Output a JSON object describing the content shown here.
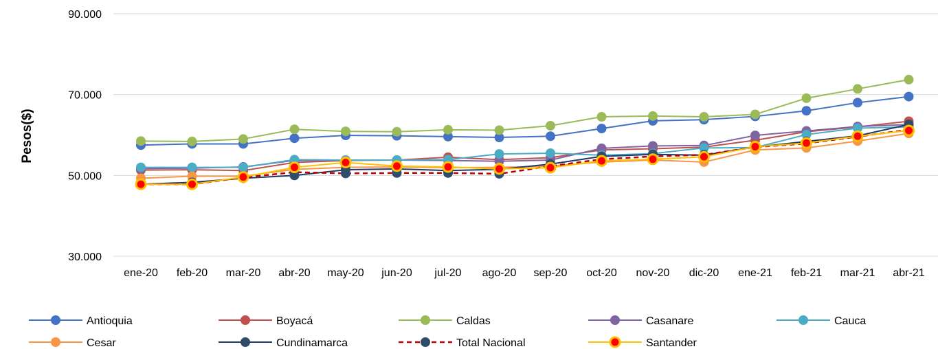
{
  "chart_data": {
    "type": "line",
    "ylabel": "Pesos($)",
    "xlabel": "",
    "ylim": [
      30000,
      90000
    ],
    "yticks": [
      30000,
      50000,
      70000,
      90000
    ],
    "ytick_labels": [
      "30.000",
      "50.000",
      "70.000",
      "90.000"
    ],
    "grid": "horizontal",
    "legend_position": "bottom",
    "categories": [
      "ene-20",
      "feb-20",
      "mar-20",
      "abr-20",
      "may-20",
      "jun-20",
      "jul-20",
      "ago-20",
      "sep-20",
      "oct-20",
      "nov-20",
      "dic-20",
      "ene-21",
      "feb-21",
      "mar-21",
      "abr-21"
    ],
    "series": [
      {
        "name": "Antioquia",
        "color": "#4472C4",
        "marker": "#4472C4",
        "dashed": false,
        "values": [
          57500,
          57800,
          57800,
          59200,
          59900,
          59800,
          59600,
          59400,
          59700,
          61600,
          63500,
          63800,
          64600,
          66000,
          68000,
          69500
        ]
      },
      {
        "name": "Boyacá",
        "color": "#C0504D",
        "marker": "#C0504D",
        "dashed": false,
        "values": [
          51300,
          51400,
          51200,
          53200,
          53700,
          53800,
          54500,
          53900,
          54400,
          56300,
          56600,
          57000,
          58700,
          60800,
          62000,
          63400
        ]
      },
      {
        "name": "Caldas",
        "color": "#9BBB59",
        "marker": "#9BBB59",
        "dashed": false,
        "values": [
          58500,
          58400,
          59000,
          61400,
          60900,
          60800,
          61300,
          61200,
          62300,
          64500,
          64700,
          64500,
          65100,
          69100,
          71400,
          73700
        ]
      },
      {
        "name": "Casanare",
        "color": "#8064A2",
        "marker": "#8064A2",
        "dashed": false,
        "values": [
          51700,
          51800,
          52100,
          53700,
          53800,
          53800,
          53700,
          53500,
          53800,
          56700,
          57300,
          57400,
          59900,
          61000,
          62100,
          62600
        ]
      },
      {
        "name": "Cauca",
        "color": "#4BACC6",
        "marker": "#4BACC6",
        "dashed": false,
        "values": [
          52000,
          52000,
          52000,
          53900,
          53800,
          53800,
          53900,
          55300,
          55500,
          55000,
          55400,
          56800,
          56900,
          60100,
          61700,
          62000
        ]
      },
      {
        "name": "Cesar",
        "color": "#F79646",
        "marker": "#F79646",
        "dashed": false,
        "values": [
          49300,
          49800,
          49800,
          51500,
          52000,
          52100,
          51900,
          52000,
          52300,
          53300,
          53800,
          53300,
          56300,
          56800,
          58500,
          60400
        ]
      },
      {
        "name": "Cundinamarca",
        "color": "#1F3864",
        "marker": "#2E4D6B",
        "dashed": false,
        "values": [
          47800,
          48300,
          49300,
          50000,
          51400,
          51600,
          51200,
          51500,
          52800,
          54700,
          55200,
          55000,
          57000,
          58400,
          59800,
          62600
        ]
      },
      {
        "name": "Total Nacional",
        "color": "#C00000",
        "marker": "#2E4D6B",
        "dashed": true,
        "values": [
          47800,
          47800,
          49500,
          50800,
          50500,
          50600,
          50600,
          50400,
          52300,
          54000,
          54700,
          55100,
          57000,
          57900,
          59600,
          61300
        ]
      },
      {
        "name": "Santander",
        "color": "#FFC000",
        "marker": "#FF0000",
        "dashed": false,
        "values": [
          47800,
          47800,
          49600,
          52000,
          53200,
          52300,
          52100,
          51600,
          51900,
          53600,
          54000,
          54600,
          57100,
          58000,
          59700,
          61100
        ]
      }
    ]
  }
}
